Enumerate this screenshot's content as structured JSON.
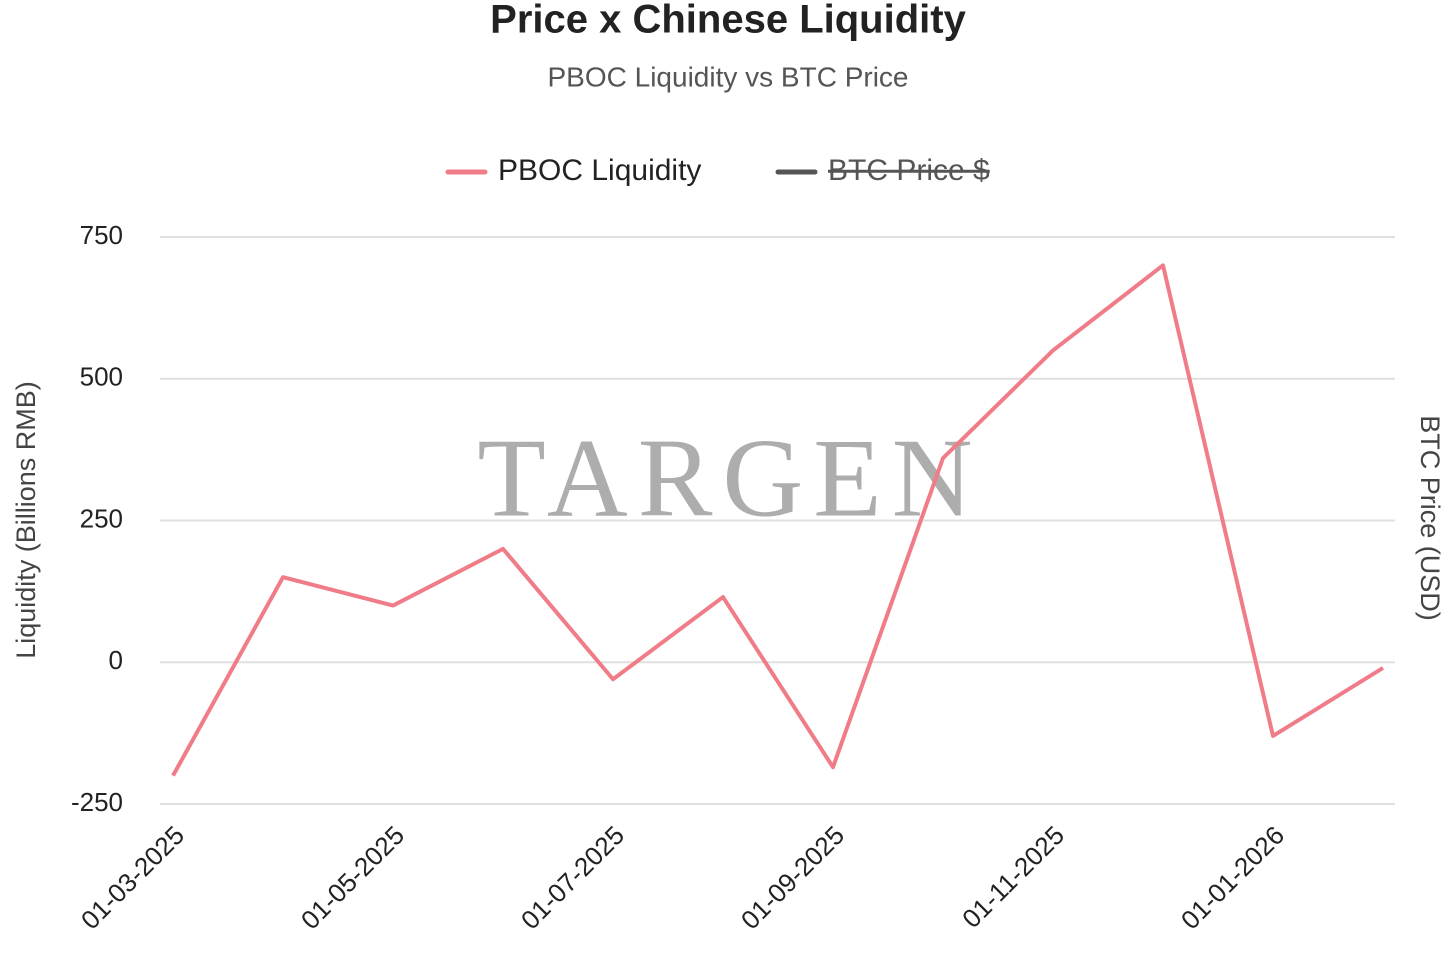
{
  "chart_data": {
    "type": "line",
    "title": "Price x Chinese Liquidity",
    "subtitle": "PBOC Liquidity vs BTC Price",
    "y_label": "Liquidity (Billions RMB)",
    "y2_label": "BTC Price (USD)",
    "watermark": "TARGEN",
    "categories": [
      "01-03-2025",
      null,
      "01-05-2025",
      null,
      "01-07-2025",
      null,
      "01-09-2025",
      null,
      "01-11-2025",
      null,
      "01-01-2026",
      null
    ],
    "series": [
      {
        "name": "PBOC Liquidity",
        "color": "#f07c88",
        "values": [
          -200,
          150,
          100,
          200,
          -30,
          115,
          -185,
          360,
          550,
          700,
          -130,
          -10
        ]
      },
      {
        "name": "BTC Price $",
        "color": "#555555",
        "axis": "y2",
        "hidden": true,
        "values": [
          null,
          null,
          null,
          null,
          null,
          null,
          null,
          null,
          null,
          null,
          null,
          null
        ]
      }
    ],
    "ylim": [
      -250,
      750
    ],
    "yticks": [
      -250,
      0,
      250,
      500,
      750
    ],
    "grid": true
  }
}
